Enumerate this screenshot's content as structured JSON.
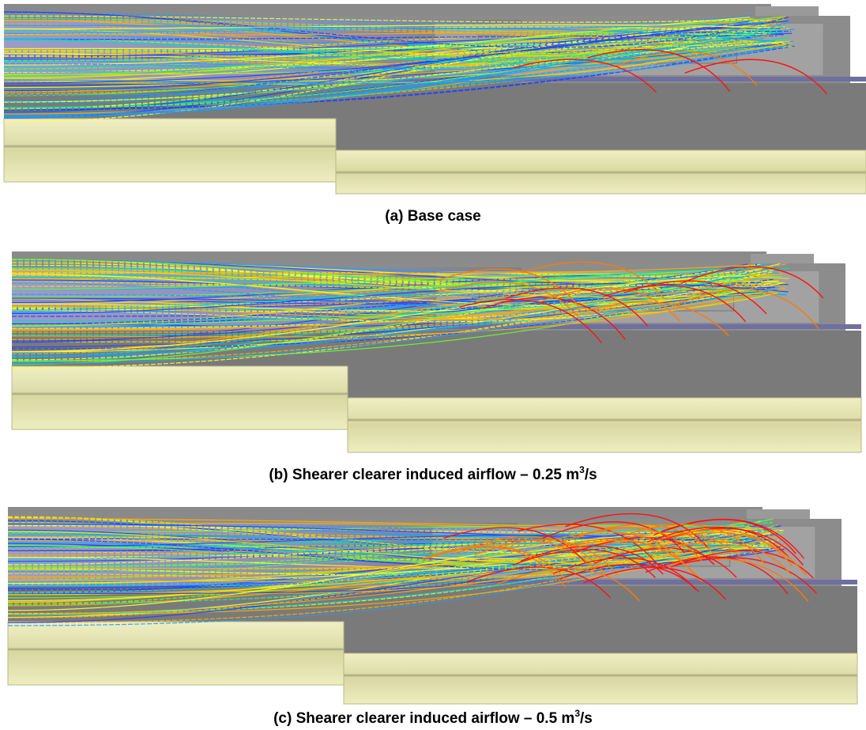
{
  "figure": {
    "panels": [
      {
        "caption": {
          "text": "(a) Base case"
        }
      },
      {
        "caption": {
          "text": "(b) Shearer clearer induced airflow – 0.25 m",
          "sup": "3",
          "tail": "/s"
        }
      },
      {
        "caption": {
          "text": "(c) Shearer clearer induced airflow – 0.5 m",
          "sup": "3",
          "tail": "/s"
        }
      }
    ]
  }
}
